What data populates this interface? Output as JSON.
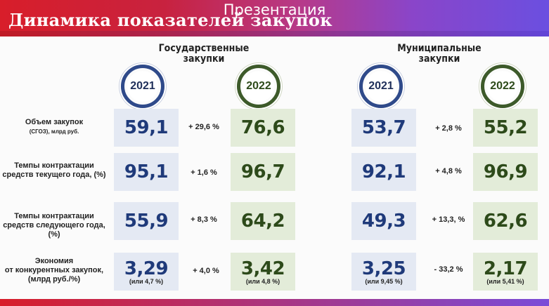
{
  "window": {
    "title": "Презентация"
  },
  "slide": {
    "title": "Динамика показателей закупок",
    "groups": [
      {
        "heading_line1": "Государственные",
        "heading_line2": "закупки",
        "year_a": "2021",
        "year_b": "2022"
      },
      {
        "heading_line1": "Муниципальные",
        "heading_line2": "закупки",
        "year_a": "2021",
        "year_b": "2022"
      }
    ],
    "rows": [
      {
        "label_line1": "Объем закупок",
        "label_line2": "(СГОЗ), млрд руб.",
        "gov_2021": "59,1",
        "gov_delta": "+ 29,6 %",
        "gov_2022": "76,6",
        "mun_2021": "53,7",
        "mun_delta": "+ 2,8 %",
        "mun_2022": "55,2"
      },
      {
        "label_line1": "Темпы контрактации",
        "label_line2": "средств текущего года, (%)",
        "gov_2021": "95,1",
        "gov_delta": "+ 1,6 %",
        "gov_2022": "96,7",
        "mun_2021": "92,1",
        "mun_delta": "+ 4,8 %",
        "mun_2022": "96,9"
      },
      {
        "label_line1": "Темпы контрактации",
        "label_line2": "средств следующего года, (%)",
        "gov_2021": "55,9",
        "gov_delta": "+ 8,3 %",
        "gov_2022": "64,2",
        "mun_2021": "49,3",
        "mun_delta": "+ 13,3, %",
        "mun_2022": "62,6"
      },
      {
        "label_line1": "Экономия",
        "label_line2": "от конкурентных закупок,",
        "label_line3": "(млрд руб./%)",
        "gov_2021": "3,29",
        "gov_2021_note": "(или 4,7 %)",
        "gov_delta": "+ 4,0 %",
        "gov_2022": "3,42",
        "gov_2022_note": "(или 4,8 %)",
        "mun_2021": "3,25",
        "mun_2021_note": "(или 9,45 %)",
        "mun_delta": "- 33,2 %",
        "mun_2022": "2,17",
        "mun_2022_note": "(или 5,41 %)"
      }
    ]
  },
  "colors": {
    "blue_box": "#e4e9f3",
    "green_box": "#e3ecd9",
    "blue_ring": "#2f4a8a",
    "green_ring": "#3d5a2a"
  }
}
